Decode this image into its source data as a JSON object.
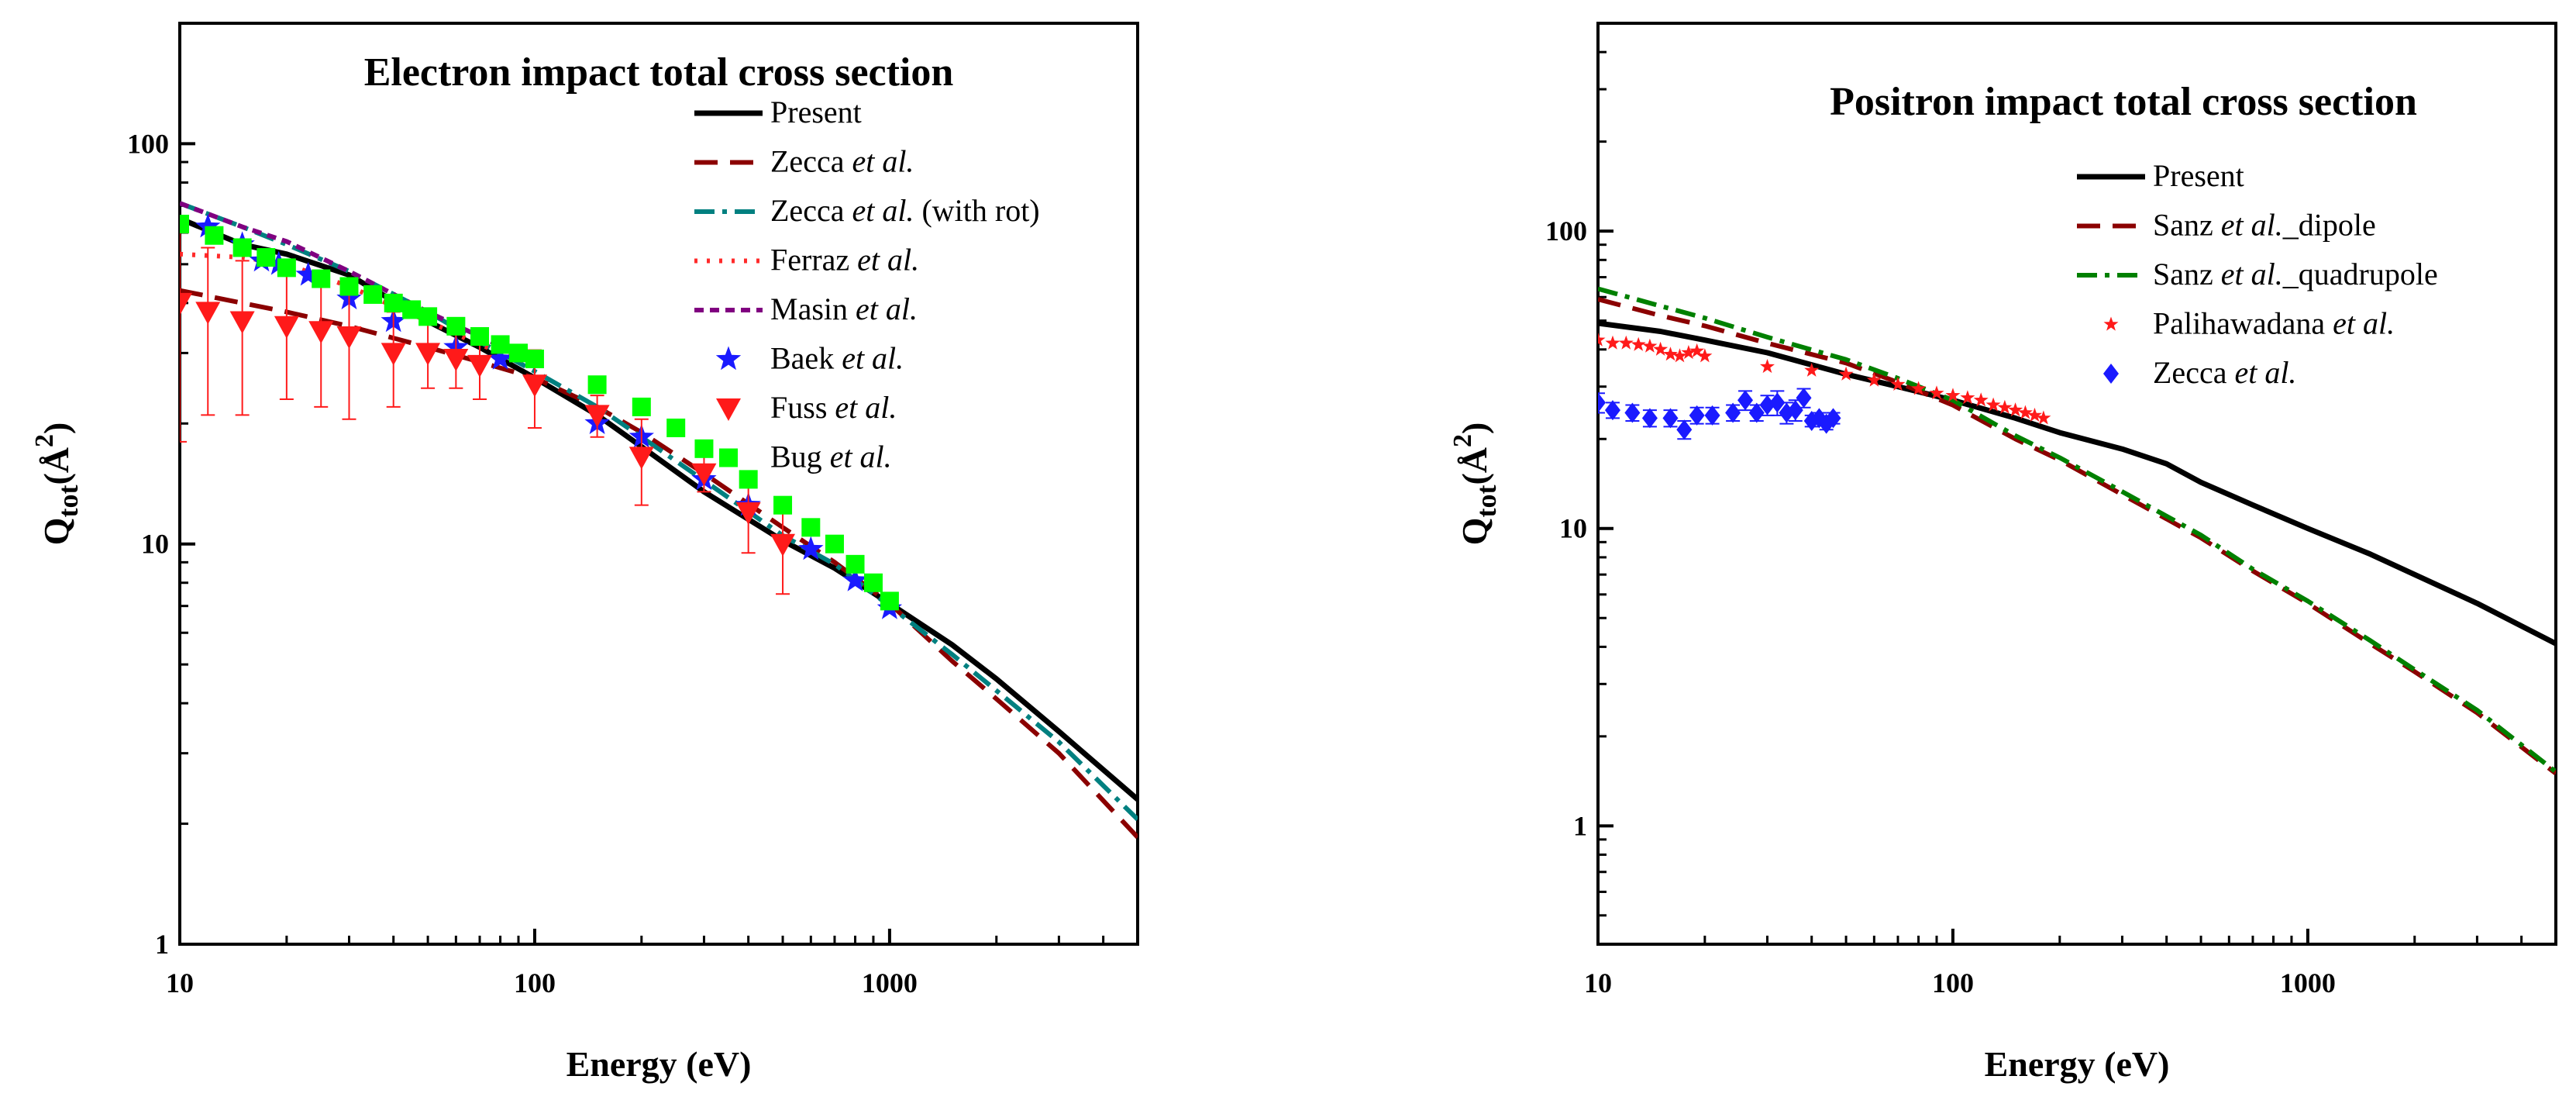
{
  "chart_data": [
    {
      "type": "line",
      "title": "Electron impact total cross section",
      "xlabel": "Energy (eV)",
      "ylabel": "Q_tot(Å^2)",
      "ylabel_main": "Q",
      "ylabel_sub": "tot",
      "ylabel_unit": "(Å",
      "ylabel_sup": "2",
      "ylabel_close": ")",
      "xscale": "log",
      "yscale": "log",
      "xlim": [
        10,
        5000
      ],
      "ylim": [
        1,
        200
      ],
      "xticks": [
        {
          "v": 10,
          "label": "10"
        },
        {
          "v": 100,
          "label": "100"
        },
        {
          "v": 1000,
          "label": "1000"
        }
      ],
      "yticks": [
        {
          "v": 1,
          "label": "1"
        },
        {
          "v": 10,
          "label": "10"
        },
        {
          "v": 100,
          "label": "100"
        }
      ],
      "grid": false,
      "legend_position": "top-right",
      "series": [
        {
          "name": "Present",
          "italic": "",
          "suffix": "",
          "kind": "line",
          "color": "#000000",
          "dash": "none",
          "width": 7,
          "x": [
            10,
            15,
            20,
            30,
            50,
            70,
            100,
            150,
            200,
            300,
            500,
            700,
            1000,
            1500,
            2000,
            3000,
            5000
          ],
          "y": [
            65,
            56,
            53,
            47,
            36,
            31,
            26,
            21,
            17.5,
            13.5,
            10.2,
            8.7,
            7.1,
            5.6,
            4.6,
            3.4,
            2.3
          ]
        },
        {
          "name": "Zecca ",
          "italic": "et al.",
          "suffix": "",
          "kind": "line",
          "color": "#8b0000",
          "dash": "30,16",
          "width": 6,
          "x": [
            10,
            20,
            30,
            50,
            70,
            100,
            150,
            200,
            300,
            500,
            700,
            1000,
            1500,
            2000,
            3000,
            5000
          ],
          "y": [
            43,
            38,
            35,
            31,
            28.5,
            26,
            22,
            19,
            15,
            11,
            9,
            7.1,
            5.1,
            4.1,
            3,
            1.85
          ]
        },
        {
          "name": "Zecca ",
          "italic": "et al.",
          "suffix": " (with rot)",
          "kind": "line",
          "color": "#008080",
          "dash": "26,10,6,10",
          "width": 6,
          "x": [
            10,
            15,
            20,
            30,
            50,
            70,
            100,
            150,
            200,
            300,
            500,
            700,
            1000,
            1500,
            2000,
            3000,
            5000
          ],
          "y": [
            71,
            62,
            56,
            48,
            38,
            32,
            27,
            22,
            18.5,
            14.4,
            10.5,
            8.9,
            7,
            5.3,
            4.3,
            3.2,
            2.05
          ]
        },
        {
          "name": "Ferraz ",
          "italic": "et al.",
          "suffix": "",
          "kind": "line",
          "color": "#ff2a2a",
          "dash": "4,12",
          "width": 6,
          "x": [
            10,
            15,
            20,
            30,
            50,
            70,
            100
          ],
          "y": [
            53,
            52,
            50,
            44,
            36,
            31.5,
            28
          ]
        },
        {
          "name": "Masin ",
          "italic": "et al.",
          "suffix": "",
          "kind": "line",
          "color": "#800080",
          "dash": "12,8",
          "width": 6,
          "x": [
            10,
            15,
            20,
            30,
            50,
            70,
            100
          ],
          "y": [
            71,
            62,
            57,
            48,
            38,
            33,
            28.5
          ]
        },
        {
          "name": "Baek ",
          "italic": "et al.",
          "suffix": "",
          "kind": "marker",
          "marker": "star",
          "color": "#1a1aff",
          "x": [
            12,
            15,
            17,
            19,
            23,
            30,
            40,
            60,
            80,
            150,
            200,
            300,
            400,
            600,
            800,
            1000
          ],
          "y": [
            62,
            56,
            51,
            50,
            47,
            41,
            36,
            31,
            29,
            20,
            18.5,
            14.5,
            12.5,
            9.7,
            8.1,
            6.9
          ]
        },
        {
          "name": "Fuss ",
          "italic": "et al.",
          "suffix": "",
          "kind": "marker",
          "marker": "tri-down",
          "color": "#ff1a1a",
          "x": [
            10,
            12,
            15,
            20,
            25,
            30,
            40,
            50,
            60,
            70,
            100,
            150,
            200,
            300,
            400,
            500
          ],
          "y": [
            40,
            38,
            36,
            35,
            34,
            33,
            30,
            30,
            29,
            28,
            25,
            21,
            16.5,
            15,
            12,
            10
          ],
          "err": [
            22,
            17,
            15,
            12,
            12,
            12.5,
            8,
            5.5,
            4.5,
            5,
            5.5,
            2.5,
            4,
            1.5,
            2.5,
            2.5
          ]
        },
        {
          "name": "Bug ",
          "italic": "et al.",
          "suffix": "",
          "kind": "marker",
          "marker": "square",
          "color": "#00ff00",
          "x": [
            10,
            12.5,
            15,
            17.5,
            20,
            25,
            30,
            35,
            40,
            45,
            50,
            60,
            70,
            80,
            90,
            100,
            150,
            200,
            250,
            300,
            400,
            500,
            600,
            700,
            800,
            900,
            1000
          ],
          "y": [
            63,
            59,
            55,
            52,
            49,
            46,
            44,
            42,
            40,
            38.5,
            37,
            35,
            33,
            31.5,
            30,
            29,
            25,
            22,
            19.5,
            17.3,
            14.5,
            12.5,
            11,
            10,
            8.9,
            8,
            7.2
          ]
        }
      ]
    },
    {
      "type": "line",
      "title": "Positron impact total cross section",
      "xlabel": "Energy (eV)",
      "ylabel": "Q_tot(Å^2)",
      "ylabel_main": "Q",
      "ylabel_sub": "tot",
      "ylabel_unit": "(Å",
      "ylabel_sup": "2",
      "ylabel_close": ")",
      "xscale": "log",
      "yscale": "log",
      "xlim": [
        10,
        5000
      ],
      "ylim": [
        0.4,
        500
      ],
      "xticks": [
        {
          "v": 10,
          "label": "10"
        },
        {
          "v": 100,
          "label": "100"
        },
        {
          "v": 1000,
          "label": "1000"
        }
      ],
      "yticks": [
        {
          "v": 1,
          "label": "1"
        },
        {
          "v": 10,
          "label": "10"
        },
        {
          "v": 100,
          "label": "100"
        }
      ],
      "grid": false,
      "legend_position": "top-right",
      "series": [
        {
          "name": "Present",
          "italic": "",
          "suffix": "",
          "kind": "line",
          "color": "#000000",
          "dash": "none",
          "width": 7,
          "x": [
            10,
            15,
            20,
            30,
            50,
            70,
            100,
            150,
            200,
            300,
            400,
            500,
            700,
            1000,
            1500,
            2000,
            3000,
            5000
          ],
          "y": [
            49,
            46,
            43,
            39,
            33,
            30,
            27,
            23.5,
            21,
            18.5,
            16.5,
            14.3,
            12,
            10,
            8.2,
            7,
            5.6,
            4.1
          ]
        },
        {
          "name": "Sanz ",
          "italic": "et al.",
          "suffix": "_dipole",
          "kind": "line",
          "color": "#8b0000",
          "dash": "30,16",
          "width": 6,
          "x": [
            10,
            15,
            20,
            30,
            50,
            70,
            100,
            150,
            200,
            300,
            500,
            700,
            1000,
            1500,
            2000,
            3000,
            5000
          ],
          "y": [
            59,
            52,
            48,
            42,
            36,
            31,
            26,
            20,
            17,
            13,
            9.3,
            7.2,
            5.6,
            4.1,
            3.3,
            2.4,
            1.5
          ]
        },
        {
          "name": "Sanz ",
          "italic": "et al.",
          "suffix": "_quadrupole",
          "kind": "line",
          "color": "#008000",
          "dash": "26,10,6,10",
          "width": 6,
          "x": [
            10,
            15,
            20,
            30,
            50,
            70,
            100,
            150,
            200,
            300,
            500,
            700,
            1000,
            1500,
            2000,
            3000,
            5000
          ],
          "y": [
            64,
            56,
            51,
            44,
            37,
            32,
            27,
            20.5,
            17.3,
            13.3,
            9.5,
            7.3,
            5.7,
            4.2,
            3.35,
            2.45,
            1.52
          ]
        },
        {
          "name": "Palihawadana ",
          "italic": "et al.",
          "suffix": "",
          "kind": "marker",
          "marker": "star-small",
          "color": "#ff1a1a",
          "x": [
            10,
            11,
            12,
            13,
            14,
            15,
            16,
            17,
            18,
            19,
            20,
            30,
            40,
            50,
            60,
            70,
            80,
            90,
            100,
            110,
            120,
            130,
            140,
            150,
            160,
            170,
            180
          ],
          "y": [
            43,
            42,
            42,
            41.5,
            41,
            40,
            38.5,
            38,
            39,
            39.5,
            38,
            35,
            34,
            33,
            31.5,
            30.5,
            29.5,
            28.5,
            28,
            27.5,
            27,
            26,
            25.5,
            25,
            24.5,
            24,
            23.5
          ]
        },
        {
          "name": "Zecca ",
          "italic": "et al.",
          "suffix": "",
          "kind": "marker",
          "marker": "diamond",
          "color": "#1a1aff",
          "x": [
            10,
            11,
            12.5,
            14,
            16,
            17.5,
            19,
            21,
            24,
            26,
            28,
            30,
            32,
            34,
            36,
            38,
            40,
            42,
            44,
            46
          ],
          "y": [
            26.5,
            25,
            24.5,
            23.5,
            23.5,
            21.5,
            24,
            24,
            24.5,
            27,
            24.5,
            26,
            26.5,
            24.5,
            25,
            27.5,
            23,
            23.5,
            22.5,
            23.5
          ],
          "err": [
            2,
            1.5,
            1.5,
            1.5,
            1.5,
            1.5,
            1.5,
            1.5,
            1.5,
            2,
            1.5,
            2,
            2.5,
            2,
            2,
            2,
            1,
            1,
            1,
            1
          ]
        }
      ]
    }
  ]
}
